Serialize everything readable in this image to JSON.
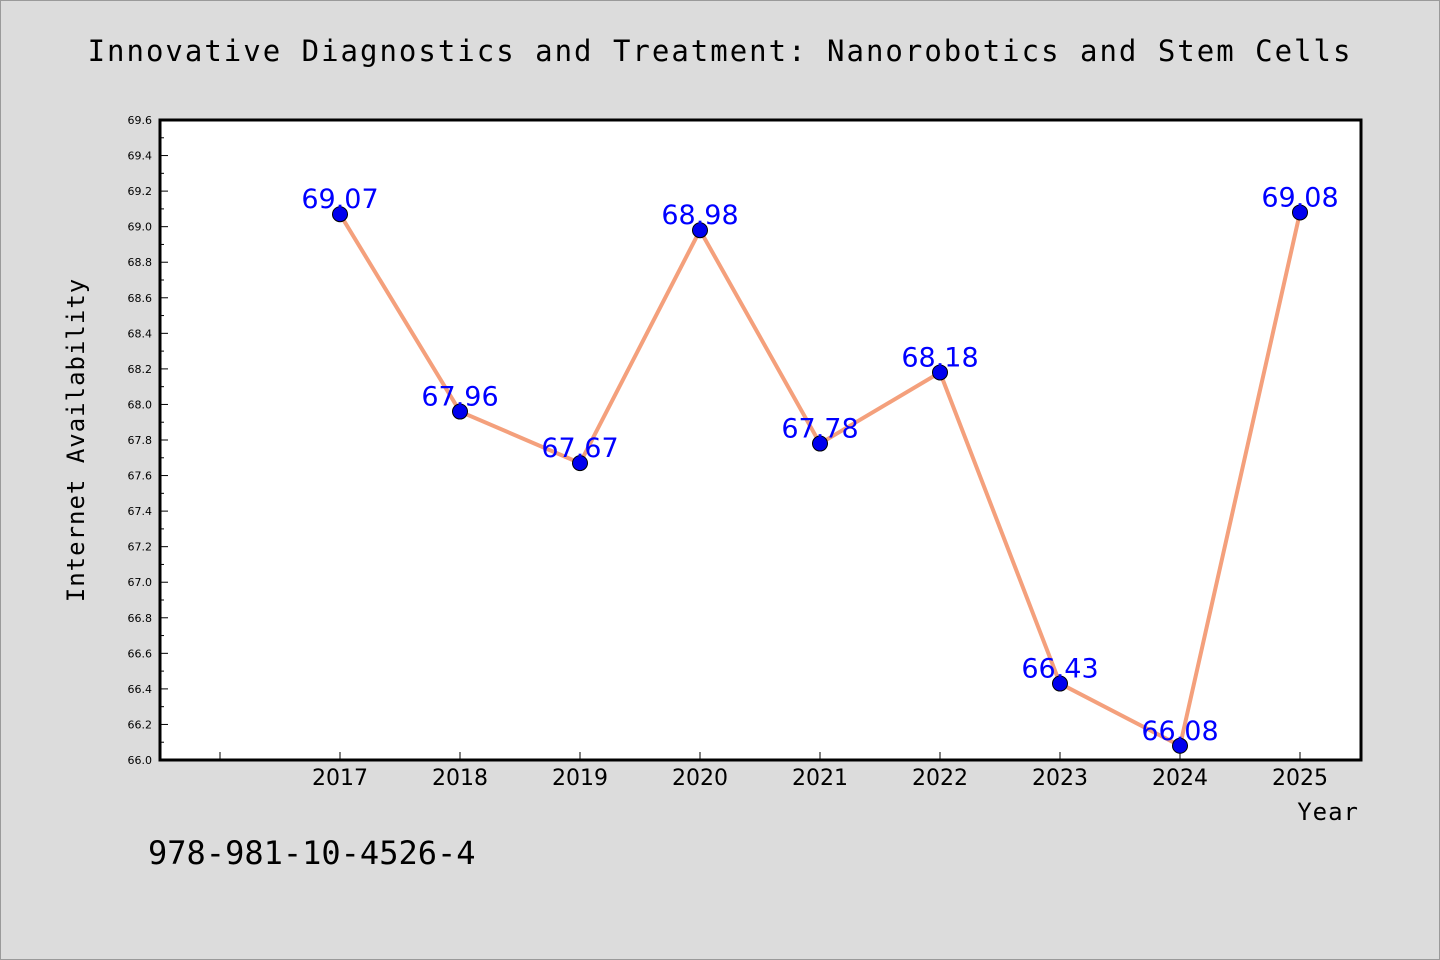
{
  "chart_data": {
    "type": "line",
    "title": "Innovative Diagnostics and Treatment: Nanorobotics and Stem Cells",
    "xlabel": "Year",
    "ylabel": "Internet Availability",
    "x": [
      "2017",
      "2018",
      "2019",
      "2020",
      "2021",
      "2022",
      "2023",
      "2024",
      "2025"
    ],
    "values": [
      69.07,
      67.96,
      67.67,
      68.98,
      67.78,
      68.18,
      66.43,
      66.08,
      69.08
    ],
    "data_labels": [
      "69.07",
      "67.96",
      "67.67",
      "68.98",
      "67.78",
      "68.18",
      "66.43",
      "66.08",
      "69.08"
    ],
    "ylim": [
      66.0,
      69.6
    ],
    "y_ticks": [
      "66.0",
      "66.2",
      "66.4",
      "66.6",
      "66.8",
      "67.0",
      "67.2",
      "67.4",
      "67.6",
      "67.8",
      "68.0",
      "68.2",
      "68.4",
      "68.6",
      "68.8",
      "69.0",
      "69.2",
      "69.4",
      "69.6"
    ],
    "grid": false,
    "colors": {
      "line": "#f4a07c",
      "marker": "#0000ee",
      "label": "#0000ff",
      "plot_bg": "#ffffff"
    }
  },
  "annotation": "978-981-10-4526-4"
}
